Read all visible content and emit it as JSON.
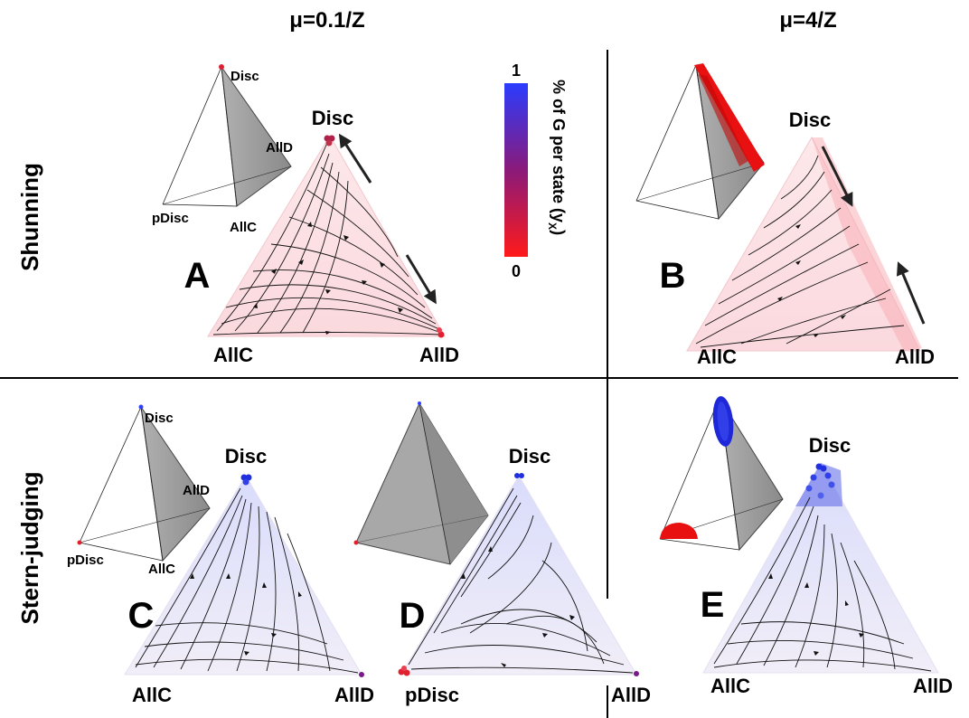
{
  "headers": {
    "left": "μ=0.1/Z",
    "right": "μ=4/Z"
  },
  "rows": {
    "top": "Shunning",
    "bottom": "Stern-judging"
  },
  "colorbar": {
    "max_label": "1",
    "min_label": "0",
    "title": "% of G per state (y",
    "title_sub": "X",
    "title_end": ")",
    "color_high": "#2a3cff",
    "color_low": "#ff1a1a"
  },
  "panels": {
    "A": {
      "letter": "A",
      "top": "Disc",
      "left": "AllC",
      "right": "AllD",
      "tetra": {
        "top": "Disc",
        "right": "AllD",
        "front": "AllC",
        "left": "pDisc"
      }
    },
    "B": {
      "letter": "B",
      "top": "Disc",
      "left": "AllC",
      "right": "AllD"
    },
    "C": {
      "letter": "C",
      "top": "Disc",
      "left": "AllC",
      "right": "AllD",
      "tetra": {
        "top": "Disc",
        "right": "AllD",
        "front": "AllC",
        "left": "pDisc"
      }
    },
    "D": {
      "letter": "D",
      "top": "Disc",
      "left": "pDisc",
      "right": "AllD"
    },
    "E": {
      "letter": "E",
      "top": "Disc",
      "left": "AllC",
      "right": "AllD"
    }
  }
}
